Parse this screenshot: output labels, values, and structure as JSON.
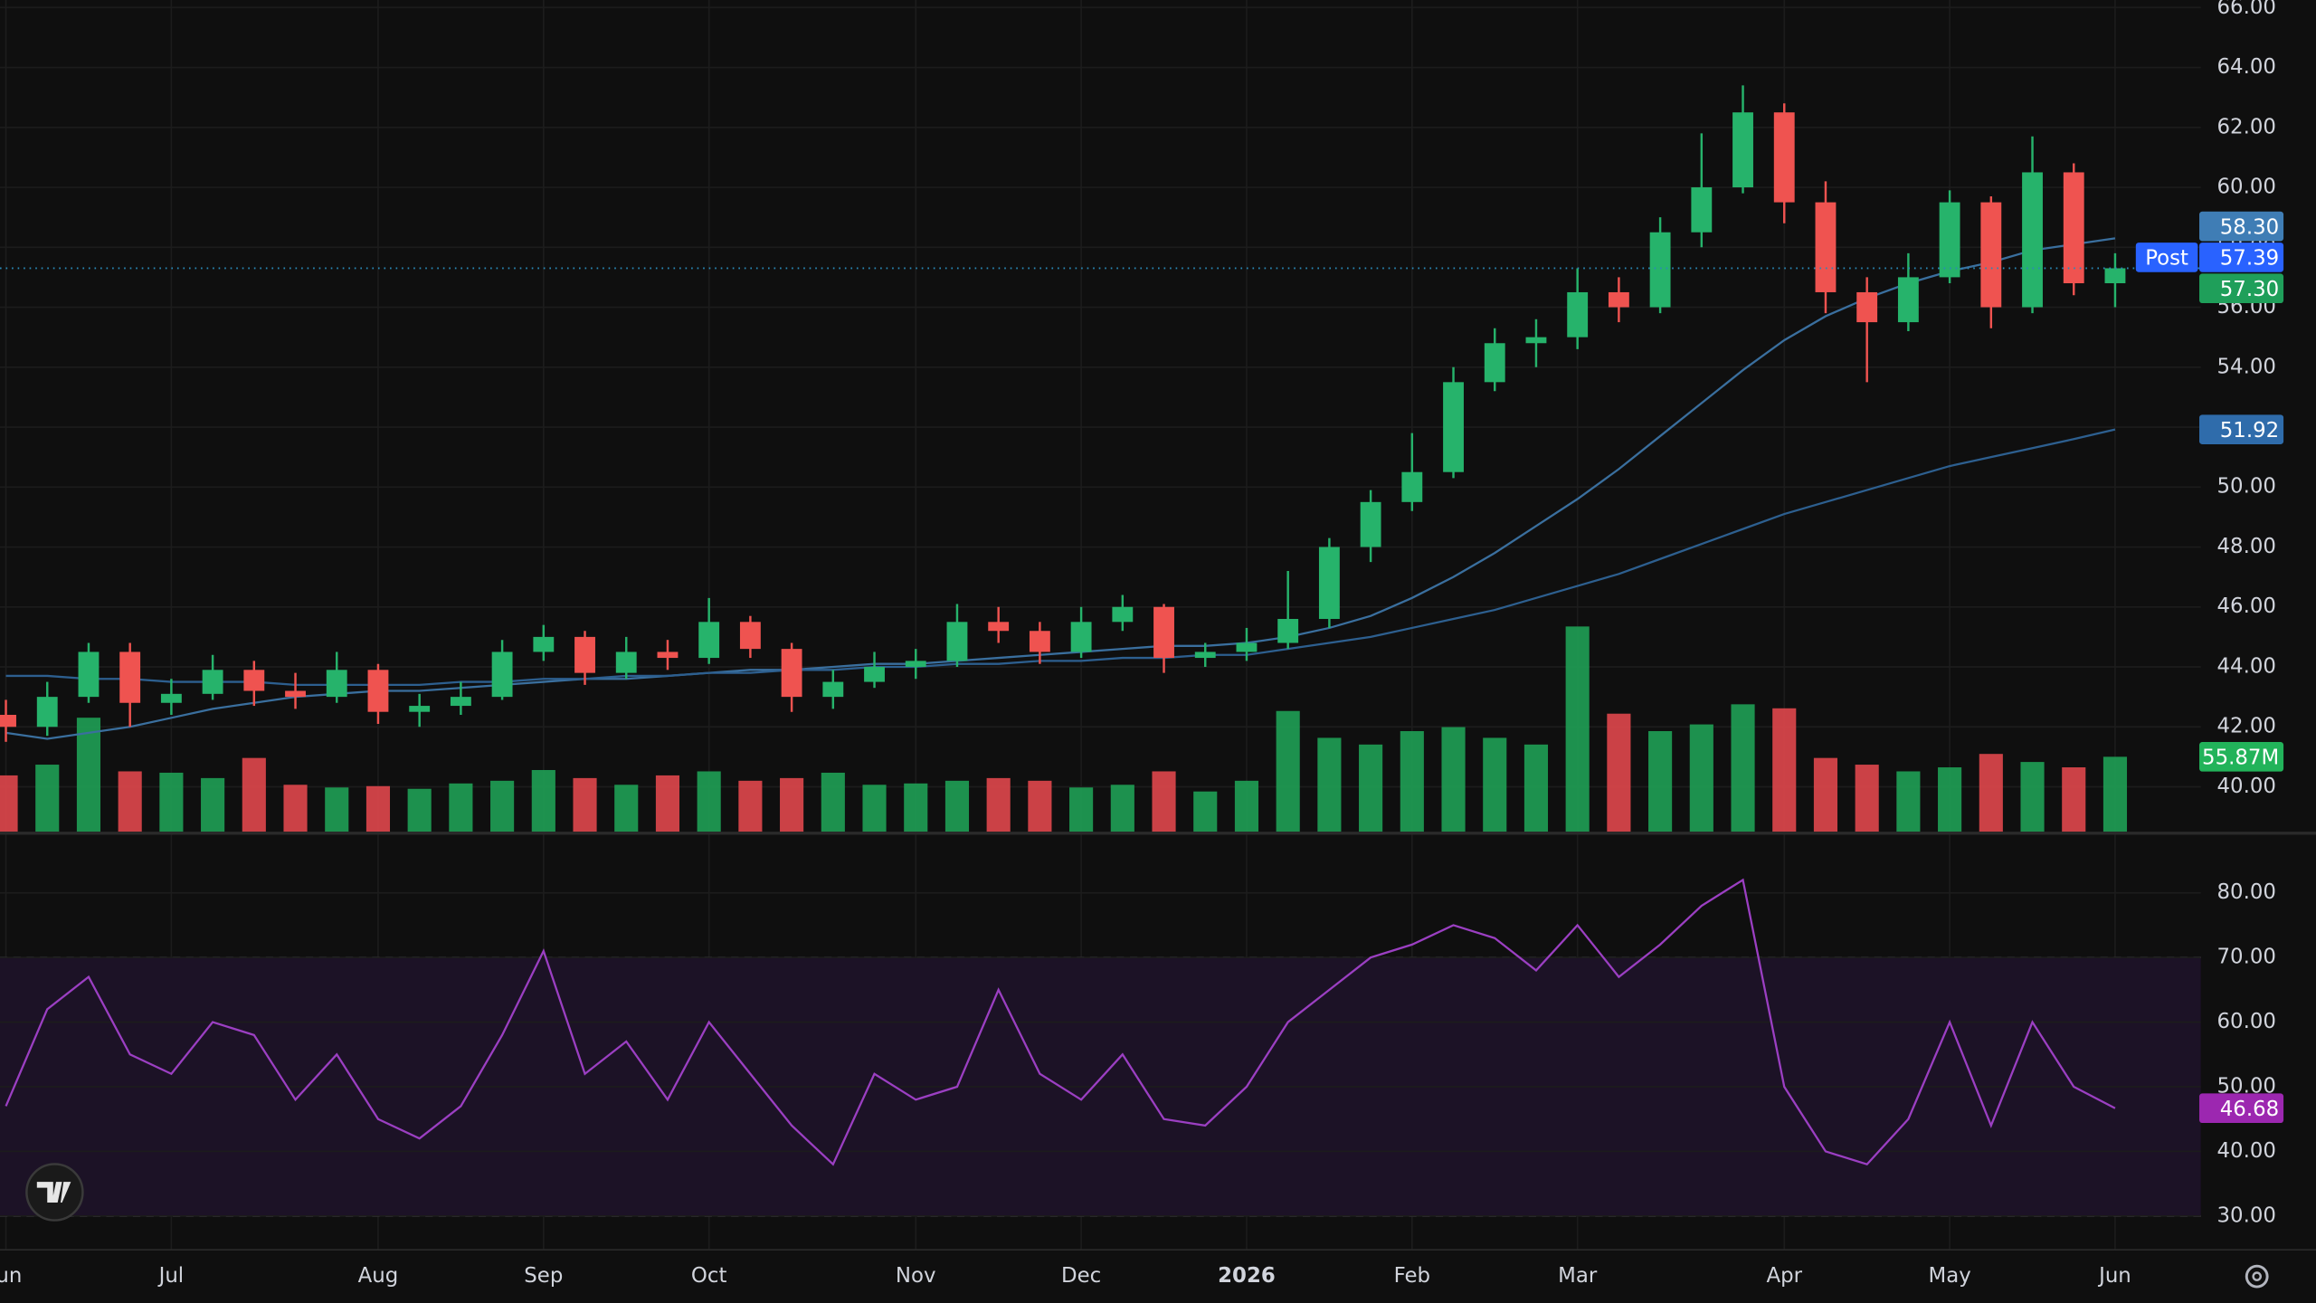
{
  "chart_data": [
    {
      "type": "candlestick",
      "categories": [
        "Jun",
        null,
        null,
        null,
        "Jul",
        null,
        null,
        null,
        null,
        "Aug",
        null,
        null,
        null,
        "Sep",
        null,
        null,
        null,
        "Oct",
        null,
        null,
        null,
        null,
        "Nov",
        null,
        null,
        null,
        "Dec",
        null,
        null,
        null,
        "2026",
        null,
        null,
        null,
        "Feb",
        null,
        null,
        null,
        "Mar",
        null,
        null,
        null,
        null,
        "Apr",
        null,
        null,
        null,
        "May",
        null,
        null,
        null,
        "Jun"
      ],
      "open": [
        42.4,
        42.0,
        43.0,
        44.5,
        42.8,
        43.1,
        43.9,
        43.2,
        43.0,
        43.9,
        42.5,
        42.7,
        43.0,
        44.5,
        45.0,
        43.8,
        44.5,
        44.3,
        45.5,
        44.6,
        43.0,
        43.5,
        44.0,
        44.2,
        45.5,
        45.2,
        44.5,
        45.5,
        46.0,
        44.3,
        44.5,
        44.8,
        45.6,
        48.0,
        49.5,
        50.5,
        53.5,
        54.8,
        55.0,
        56.5,
        56.0,
        58.5,
        60.0,
        62.5,
        59.5,
        56.5,
        55.5,
        57.0,
        59.5,
        56.0,
        60.5,
        56.8
      ],
      "high": [
        42.9,
        43.5,
        44.8,
        44.8,
        43.6,
        44.4,
        44.2,
        43.8,
        44.5,
        44.1,
        43.1,
        43.5,
        44.9,
        45.4,
        45.2,
        45.0,
        44.9,
        46.3,
        45.7,
        44.8,
        43.9,
        44.5,
        44.6,
        46.1,
        46.0,
        45.5,
        46.0,
        46.4,
        46.1,
        44.8,
        45.3,
        47.2,
        48.3,
        49.9,
        51.8,
        54.0,
        55.3,
        55.6,
        57.3,
        57.0,
        59.0,
        61.8,
        63.4,
        62.8,
        60.2,
        57.0,
        57.8,
        59.9,
        59.7,
        61.7,
        60.8,
        57.8
      ],
      "low": [
        41.5,
        41.7,
        42.8,
        42.0,
        42.4,
        42.9,
        42.7,
        42.6,
        42.8,
        42.1,
        42.0,
        42.4,
        42.9,
        44.2,
        43.4,
        43.6,
        43.9,
        44.1,
        44.3,
        42.5,
        42.6,
        43.3,
        43.6,
        44.0,
        44.8,
        44.1,
        44.3,
        45.2,
        43.8,
        44.0,
        44.2,
        44.6,
        45.3,
        47.5,
        49.2,
        50.3,
        53.2,
        54.0,
        54.6,
        55.5,
        55.8,
        58.0,
        59.8,
        58.8,
        55.8,
        53.5,
        55.2,
        56.8,
        55.3,
        55.8,
        56.4,
        56.0
      ],
      "close": [
        42.0,
        43.0,
        44.5,
        42.8,
        43.1,
        43.9,
        43.2,
        43.0,
        43.9,
        42.5,
        42.7,
        43.0,
        44.5,
        45.0,
        43.8,
        44.5,
        44.3,
        45.5,
        44.6,
        43.0,
        43.5,
        44.0,
        44.2,
        45.5,
        45.2,
        44.5,
        45.5,
        46.0,
        44.3,
        44.5,
        44.8,
        45.6,
        48.0,
        49.5,
        50.5,
        53.5,
        54.8,
        55.0,
        56.5,
        56.0,
        58.5,
        60.0,
        62.5,
        59.5,
        56.5,
        55.5,
        57.0,
        59.5,
        56.0,
        60.5,
        56.8,
        57.3
      ],
      "up_color": "#26b36b",
      "down_color": "#ef5350",
      "series": [
        {
          "color": "#3a6f9e",
          "values": [
            41.8,
            41.6,
            41.8,
            42.0,
            42.3,
            42.6,
            42.8,
            43.0,
            43.1,
            43.2,
            43.2,
            43.3,
            43.4,
            43.5,
            43.6,
            43.6,
            43.7,
            43.8,
            43.9,
            43.9,
            44.0,
            44.1,
            44.1,
            44.2,
            44.3,
            44.4,
            44.5,
            44.6,
            44.7,
            44.7,
            44.8,
            45.0,
            45.3,
            45.7,
            46.3,
            47.0,
            47.8,
            48.7,
            49.6,
            50.6,
            51.7,
            52.8,
            53.9,
            54.9,
            55.7,
            56.3,
            56.8,
            57.2,
            57.5,
            57.9,
            58.1,
            58.3
          ]
        },
        {
          "color": "#2d5f8f",
          "values": [
            43.7,
            43.7,
            43.6,
            43.6,
            43.5,
            43.5,
            43.5,
            43.4,
            43.4,
            43.4,
            43.4,
            43.5,
            43.5,
            43.6,
            43.6,
            43.7,
            43.7,
            43.8,
            43.8,
            43.9,
            43.9,
            44.0,
            44.0,
            44.1,
            44.1,
            44.2,
            44.2,
            44.3,
            44.3,
            44.4,
            44.4,
            44.6,
            44.8,
            45.0,
            45.3,
            45.6,
            45.9,
            46.3,
            46.7,
            47.1,
            47.6,
            48.1,
            48.6,
            49.1,
            49.5,
            49.9,
            50.3,
            50.7,
            51.0,
            51.3,
            51.6,
            51.92
          ]
        }
      ],
      "ylim": [
        38.5,
        66.25
      ],
      "yticks": [
        {
          "value": 40,
          "label": "40.00"
        },
        {
          "value": 42,
          "label": "42.00"
        },
        {
          "value": 44,
          "label": "44.00"
        },
        {
          "value": 46,
          "label": "46.00"
        },
        {
          "value": 48,
          "label": "48.00"
        },
        {
          "value": 50,
          "label": "50.00"
        },
        {
          "value": 52,
          "label": "52.00"
        },
        {
          "value": 54,
          "label": "54.00"
        },
        {
          "value": 56,
          "label": "56.00"
        },
        {
          "value": 58,
          "label": "58.00"
        },
        {
          "value": 60,
          "label": "60.00"
        },
        {
          "value": 62,
          "label": "62.00"
        },
        {
          "value": 64,
          "label": "64.00"
        },
        {
          "value": 66,
          "label": "66.00"
        }
      ],
      "grid": true,
      "price_labels": [
        {
          "value": 58.3,
          "label": "58.30",
          "color": "#3f7db5"
        },
        {
          "value": 57.39,
          "label": "57.39",
          "tag": "Post",
          "color": "#2962ff"
        },
        {
          "value": 57.3,
          "label": "57.30",
          "color": "#1f9f5a",
          "line": true
        },
        {
          "value": 51.92,
          "label": "51.92",
          "color": "#2f6cab"
        }
      ],
      "volume": {
        "values": [
          42,
          50,
          85,
          45,
          44,
          40,
          55,
          35,
          33,
          34,
          32,
          36,
          38,
          46,
          40,
          35,
          42,
          45,
          38,
          40,
          44,
          35,
          36,
          38,
          40,
          38,
          33,
          35,
          45,
          30,
          38,
          90,
          70,
          65,
          75,
          78,
          70,
          65,
          153,
          88,
          75,
          80,
          95,
          92,
          55,
          50,
          45,
          48,
          58,
          52,
          48,
          55.87
        ],
        "ylim": [
          0,
          620
        ],
        "up_color": "#1fa055",
        "down_color": "#e0474c",
        "marker": {
          "value": 55.87,
          "label": "55.87M",
          "color": "#22b35a"
        }
      }
    },
    {
      "type": "line",
      "values": [
        47,
        62,
        67,
        55,
        52,
        60,
        58,
        48,
        55,
        45,
        42,
        47,
        58,
        71,
        52,
        57,
        48,
        60,
        52,
        44,
        38,
        52,
        48,
        50,
        65,
        52,
        48,
        55,
        45,
        44,
        50,
        60,
        65,
        70,
        72,
        75,
        73,
        68,
        75,
        67,
        72,
        78,
        82,
        50,
        40,
        38,
        45,
        60,
        44,
        60,
        50,
        46.68
      ],
      "color": "#9b3fc2",
      "ylim": [
        25,
        89
      ],
      "yticks": [
        {
          "value": 30,
          "label": "30.00"
        },
        {
          "value": 40,
          "label": "40.00"
        },
        {
          "value": 50,
          "label": "50.00"
        },
        {
          "value": 60,
          "label": "60.00"
        },
        {
          "value": 70,
          "label": "70.00"
        },
        {
          "value": 80,
          "label": "80.00"
        }
      ],
      "grid": true,
      "band": [
        30,
        70
      ],
      "band_color": "#1c1226",
      "marker": {
        "value": 46.68,
        "label": "46.68",
        "color": "#9c27b0"
      }
    }
  ]
}
